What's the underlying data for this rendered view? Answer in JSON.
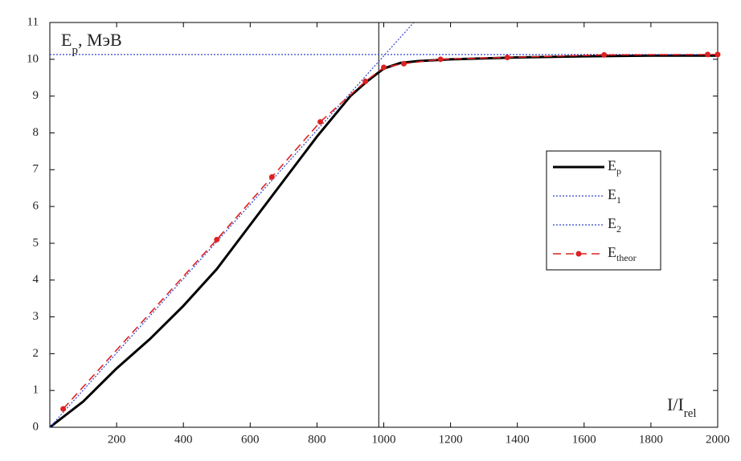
{
  "chart_data": {
    "type": "line",
    "xlim": [
      0,
      2000
    ],
    "xticks": [
      200,
      400,
      600,
      800,
      1000,
      1200,
      1400,
      1600,
      1800,
      2000
    ],
    "ylim": [
      0,
      11
    ],
    "yticks": [
      0,
      1,
      2,
      3,
      4,
      5,
      6,
      7,
      8,
      9,
      10,
      11
    ],
    "y_label": {
      "main": "E",
      "sub": "p",
      "rest": ", МэВ"
    },
    "x_label": {
      "main": "I/I",
      "sub": "rel"
    },
    "vline": 985,
    "series": [
      {
        "name": "E",
        "sub": "p",
        "color": "#000000",
        "style": "solid",
        "x": [
          0,
          100,
          200,
          300,
          400,
          500,
          600,
          700,
          800,
          900,
          950,
          1000,
          1050,
          1100,
          1200,
          1400,
          1600,
          1800,
          2000
        ],
        "values": [
          0,
          0.7,
          1.6,
          2.4,
          3.3,
          4.3,
          5.5,
          6.7,
          7.9,
          9.0,
          9.4,
          9.75,
          9.9,
          9.95,
          10.0,
          10.05,
          10.08,
          10.1,
          10.1
        ]
      },
      {
        "name": "E",
        "sub": "1",
        "color": "#3344cc",
        "style": "dotted",
        "x": [
          0,
          2000
        ],
        "values": [
          10.13,
          10.13
        ]
      },
      {
        "name": "E",
        "sub": "2",
        "color": "#3344cc",
        "style": "dotted",
        "x": [
          0,
          1090
        ],
        "values": [
          0,
          11
        ]
      },
      {
        "name": "E",
        "sub": "theor",
        "color": "#dd2222",
        "style": "dashed",
        "markers": true,
        "x": [
          40,
          500,
          665,
          810,
          945,
          1000,
          1060,
          1170,
          1370,
          1660,
          1970,
          2000
        ],
        "values": [
          0.5,
          5.1,
          6.8,
          8.3,
          9.4,
          9.78,
          9.88,
          10.0,
          10.05,
          10.12,
          10.13,
          10.13
        ]
      }
    ]
  }
}
